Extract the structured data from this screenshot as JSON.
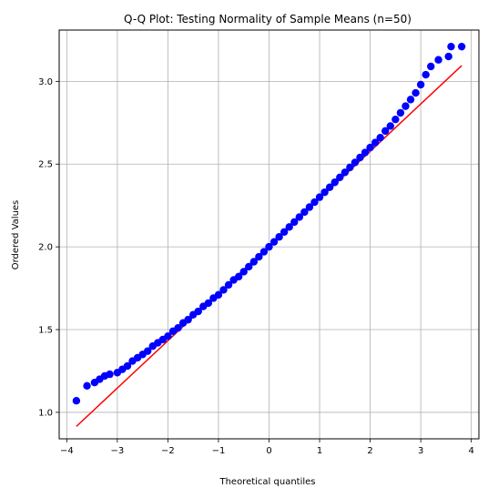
{
  "chart_data": {
    "type": "scatter",
    "title": "Q-Q Plot: Testing Normality of Sample Means (n=50)",
    "xlabel": "Theoretical quantiles",
    "ylabel": "Ordered Values",
    "xlim": [
      -4.15,
      4.15
    ],
    "ylim": [
      0.84,
      3.31
    ],
    "xticks": [
      -4,
      -3,
      -2,
      -1,
      0,
      1,
      2,
      3,
      4
    ],
    "xtick_labels": [
      "−4",
      "−3",
      "−2",
      "−1",
      "0",
      "1",
      "2",
      "3",
      "4"
    ],
    "yticks": [
      1.0,
      1.5,
      2.0,
      2.5,
      3.0
    ],
    "ytick_labels": [
      "1.0",
      "1.5",
      "2.0",
      "2.5",
      "3.0"
    ],
    "grid": true,
    "series": [
      {
        "kind": "points",
        "color": "#0000ff",
        "points": [
          [
            -3.81,
            1.07
          ],
          [
            -3.6,
            1.16
          ],
          [
            -3.45,
            1.18
          ],
          [
            -3.35,
            1.2
          ],
          [
            -3.25,
            1.22
          ],
          [
            -3.15,
            1.23
          ],
          [
            -3.0,
            1.24
          ],
          [
            -2.9,
            1.26
          ],
          [
            -2.8,
            1.28
          ],
          [
            -2.7,
            1.31
          ],
          [
            -2.6,
            1.33
          ],
          [
            -2.5,
            1.35
          ],
          [
            -2.4,
            1.37
          ],
          [
            -2.3,
            1.4
          ],
          [
            -2.2,
            1.42
          ],
          [
            -2.1,
            1.44
          ],
          [
            -2.0,
            1.46
          ],
          [
            -1.9,
            1.49
          ],
          [
            -1.8,
            1.51
          ],
          [
            -1.7,
            1.54
          ],
          [
            -1.6,
            1.56
          ],
          [
            -1.5,
            1.59
          ],
          [
            -1.4,
            1.61
          ],
          [
            -1.3,
            1.64
          ],
          [
            -1.2,
            1.66
          ],
          [
            -1.1,
            1.69
          ],
          [
            -1.0,
            1.71
          ],
          [
            -0.9,
            1.74
          ],
          [
            -0.8,
            1.77
          ],
          [
            -0.7,
            1.8
          ],
          [
            -0.6,
            1.82
          ],
          [
            -0.5,
            1.85
          ],
          [
            -0.4,
            1.88
          ],
          [
            -0.3,
            1.91
          ],
          [
            -0.2,
            1.94
          ],
          [
            -0.1,
            1.97
          ],
          [
            0.0,
            2.0
          ],
          [
            0.1,
            2.03
          ],
          [
            0.2,
            2.06
          ],
          [
            0.3,
            2.09
          ],
          [
            0.4,
            2.12
          ],
          [
            0.5,
            2.15
          ],
          [
            0.6,
            2.18
          ],
          [
            0.7,
            2.21
          ],
          [
            0.8,
            2.24
          ],
          [
            0.9,
            2.27
          ],
          [
            1.0,
            2.3
          ],
          [
            1.1,
            2.33
          ],
          [
            1.2,
            2.36
          ],
          [
            1.3,
            2.39
          ],
          [
            1.4,
            2.42
          ],
          [
            1.5,
            2.45
          ],
          [
            1.6,
            2.48
          ],
          [
            1.7,
            2.51
          ],
          [
            1.8,
            2.54
          ],
          [
            1.9,
            2.57
          ],
          [
            2.0,
            2.6
          ],
          [
            2.1,
            2.63
          ],
          [
            2.2,
            2.66
          ],
          [
            2.3,
            2.7
          ],
          [
            2.4,
            2.73
          ],
          [
            2.5,
            2.77
          ],
          [
            2.6,
            2.81
          ],
          [
            2.7,
            2.85
          ],
          [
            2.8,
            2.89
          ],
          [
            2.9,
            2.93
          ],
          [
            3.0,
            2.98
          ],
          [
            3.1,
            3.04
          ],
          [
            3.2,
            3.09
          ],
          [
            3.35,
            3.13
          ],
          [
            3.55,
            3.15
          ],
          [
            3.6,
            3.21
          ],
          [
            3.81,
            3.21
          ]
        ]
      },
      {
        "kind": "line",
        "color": "#ff0000",
        "points": [
          [
            -3.81,
            0.915
          ],
          [
            3.81,
            3.095
          ]
        ]
      }
    ]
  }
}
